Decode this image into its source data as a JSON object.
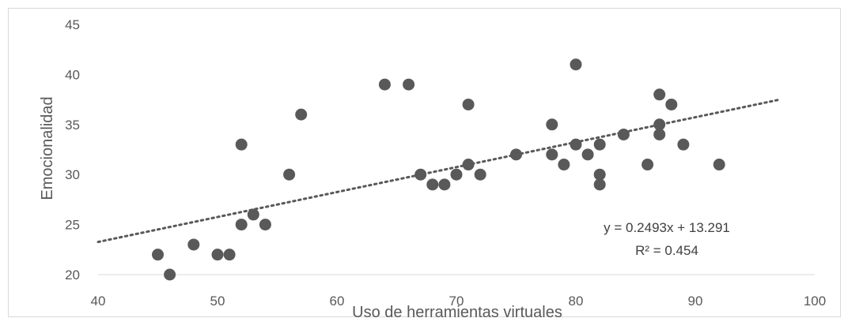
{
  "chart_data": {
    "type": "scatter",
    "title": "",
    "xlabel": "Uso de herramientas virtuales",
    "ylabel": "Emocionalidad",
    "xlim": [
      40,
      100
    ],
    "ylim": [
      20,
      45
    ],
    "x_ticks": [
      "40",
      "50",
      "60",
      "70",
      "80",
      "90",
      "100"
    ],
    "y_ticks": [
      "20",
      "25",
      "30",
      "35",
      "40",
      "45"
    ],
    "grid": false,
    "legend": "none",
    "series": [
      {
        "color": "#595959",
        "points": [
          [
            45,
            22
          ],
          [
            46,
            20
          ],
          [
            48,
            23
          ],
          [
            50,
            22
          ],
          [
            51,
            22
          ],
          [
            52,
            33
          ],
          [
            52,
            25
          ],
          [
            53,
            26
          ],
          [
            54,
            25
          ],
          [
            56,
            30
          ],
          [
            57,
            36
          ],
          [
            64,
            39
          ],
          [
            66,
            39
          ],
          [
            67,
            30
          ],
          [
            68,
            29
          ],
          [
            69,
            29
          ],
          [
            70,
            30
          ],
          [
            71,
            37
          ],
          [
            71,
            31
          ],
          [
            72,
            30
          ],
          [
            75,
            32
          ],
          [
            78,
            35
          ],
          [
            78,
            32
          ],
          [
            79,
            31
          ],
          [
            80,
            41
          ],
          [
            80,
            33
          ],
          [
            81,
            32
          ],
          [
            82,
            33
          ],
          [
            82,
            30
          ],
          [
            82,
            29
          ],
          [
            84,
            34
          ],
          [
            86,
            31
          ],
          [
            87,
            38
          ],
          [
            87,
            35
          ],
          [
            87,
            34
          ],
          [
            88,
            37
          ],
          [
            89,
            33
          ],
          [
            92,
            31
          ]
        ]
      }
    ],
    "trendline": {
      "type": "linear",
      "style": "dotted",
      "color": "#595959",
      "slope": 0.2493,
      "intercept": 13.291,
      "x_range": [
        40,
        97
      ],
      "equation": "y = 0.2493x + 13.291",
      "r_squared": "R² = 0.454"
    }
  }
}
